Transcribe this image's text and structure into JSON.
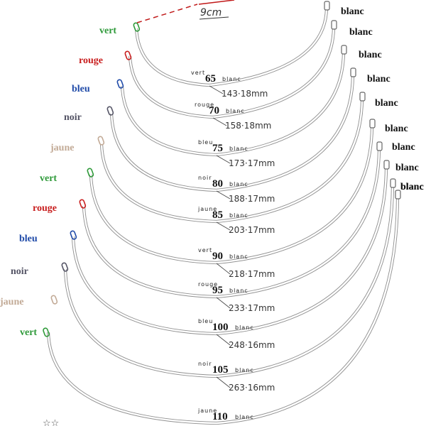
{
  "colors": {
    "vert": "#2f9a3a",
    "rouge": "#c81e1e",
    "bleu": "#1f4aa8",
    "noir": "#555566",
    "jaune": "#c2aa96",
    "blanc": "#111111",
    "wire": "#8f8f8f"
  },
  "scale_label": "9cm",
  "wires": [
    {
      "size": "65",
      "left_color": "vert",
      "right_color": "blanc",
      "length": "143·18mm"
    },
    {
      "size": "70",
      "left_color": "rouge",
      "right_color": "blanc",
      "length": "158·18mm"
    },
    {
      "size": "75",
      "left_color": "bleu",
      "right_color": "blanc",
      "length": "173·17mm"
    },
    {
      "size": "80",
      "left_color": "noir",
      "right_color": "blanc",
      "length": "188·17mm"
    },
    {
      "size": "85",
      "left_color": "jaune",
      "right_color": "blanc",
      "length": "203·17mm"
    },
    {
      "size": "90",
      "left_color": "vert",
      "right_color": "blanc",
      "length": "218·17mm"
    },
    {
      "size": "95",
      "left_color": "rouge",
      "right_color": "blanc",
      "length": "233·17mm"
    },
    {
      "size": "100",
      "left_color": "bleu",
      "right_color": "blanc",
      "length": "248·16mm"
    },
    {
      "size": "105",
      "left_color": "noir",
      "right_color": "blanc",
      "length": "263·16mm"
    },
    {
      "size": "110",
      "left_color": "jaune",
      "right_color": "blanc",
      "length": ""
    }
  ],
  "extra_left_labels": [
    {
      "text": "vert",
      "color": "vert"
    }
  ],
  "extra_right_labels": [
    {
      "text": "blanc"
    }
  ],
  "footer_mark": "☆☆"
}
